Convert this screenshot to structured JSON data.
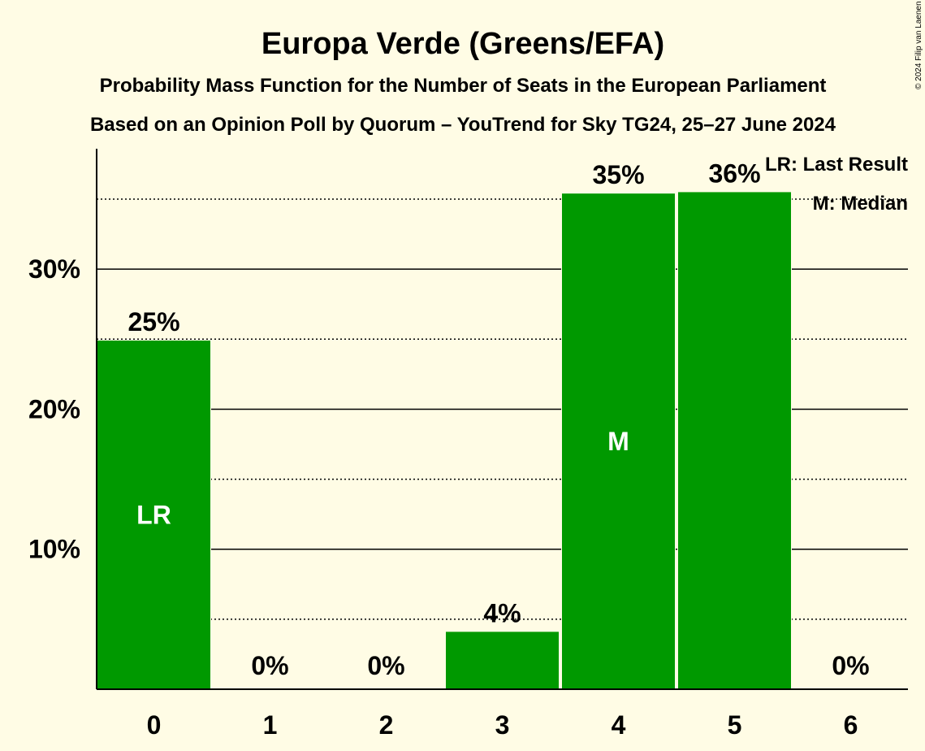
{
  "title": "Europa Verde (Greens/EFA)",
  "subtitle": "Probability Mass Function for the Number of Seats in the European Parliament",
  "subtitle2": "Based on an Opinion Poll by Quorum – YouTrend for Sky TG24, 25–27 June 2024",
  "copyright": "© 2024 Filip van Laenen",
  "legend": {
    "last_result": "LR: Last Result",
    "median": "M: Median"
  },
  "colors": {
    "bar": "#009900",
    "background": "#FFFCE5"
  },
  "chart_data": {
    "type": "bar",
    "categories": [
      "0",
      "1",
      "2",
      "3",
      "4",
      "5",
      "6"
    ],
    "values": [
      24.9,
      0,
      0,
      4.1,
      35.4,
      35.5,
      0
    ],
    "value_labels": [
      "25%",
      "0%",
      "0%",
      "4%",
      "35%",
      "36%",
      "0%"
    ],
    "inner_labels": [
      "LR",
      "",
      "",
      "",
      "M",
      "",
      ""
    ],
    "ylim": [
      0,
      38.6
    ],
    "yticks": [
      10,
      20,
      30
    ],
    "ytick_labels": [
      "10%",
      "20%",
      "30%"
    ],
    "minor_gridlines": [
      5,
      15,
      25,
      35
    ],
    "xlabel": "",
    "ylabel": ""
  }
}
